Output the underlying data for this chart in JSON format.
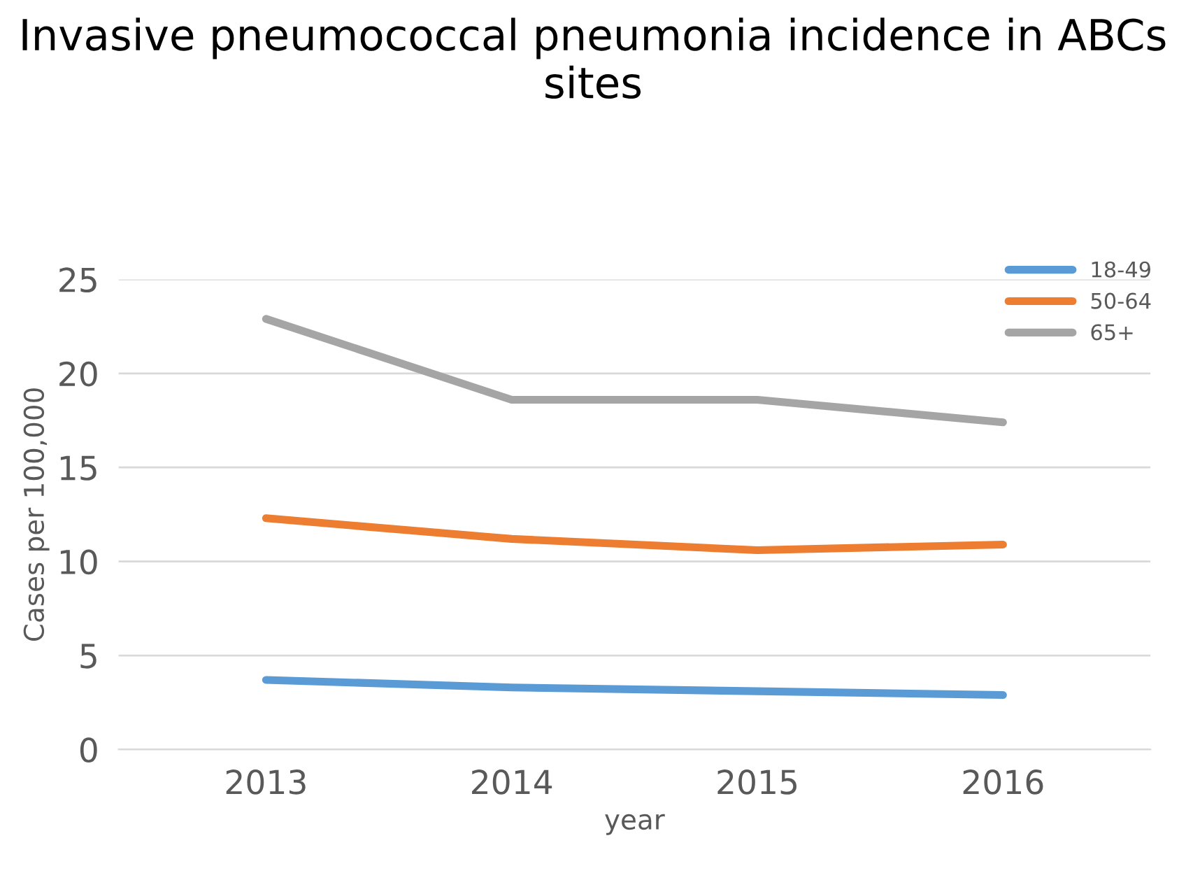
{
  "chart_data": {
    "type": "line",
    "title": "Invasive pneumococcal pneumonia incidence in ABCs sites",
    "xlabel": "year",
    "ylabel": "Cases per 100,000",
    "categories": [
      "2013",
      "2014",
      "2015",
      "2016"
    ],
    "series": [
      {
        "name": "18-49",
        "color": "#5b9bd5",
        "values": [
          3.7,
          3.3,
          3.1,
          2.9
        ]
      },
      {
        "name": "50-64",
        "color": "#ed7d31",
        "values": [
          12.3,
          11.2,
          10.6,
          10.9
        ]
      },
      {
        "name": "65+",
        "color": "#a5a5a5",
        "values": [
          22.9,
          18.6,
          18.6,
          17.4
        ]
      }
    ],
    "ylim": [
      0,
      25
    ],
    "yticks": [
      0,
      5,
      10,
      15,
      20,
      25
    ],
    "grid": "y",
    "legend": "top right",
    "marker": "none",
    "line_style": "solid"
  }
}
